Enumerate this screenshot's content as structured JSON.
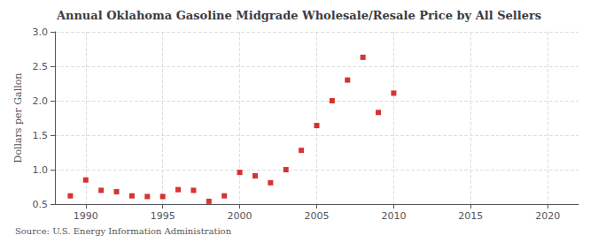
{
  "chart_data": {
    "type": "scatter",
    "title": "Annual Oklahoma Gasoline Midgrade Wholesale/Resale Price by All Sellers",
    "ylabel": "Dollars per Gallon",
    "annotations": [
      "Source: U.S. Energy Information Administration"
    ],
    "x": [
      1989,
      1990,
      1991,
      1992,
      1993,
      1994,
      1995,
      1996,
      1997,
      1998,
      1999,
      2000,
      2001,
      2002,
      2003,
      2004,
      2005,
      2006,
      2007,
      2008,
      2009,
      2010
    ],
    "values": [
      0.62,
      0.85,
      0.7,
      0.68,
      0.62,
      0.61,
      0.61,
      0.71,
      0.7,
      0.54,
      0.62,
      0.96,
      0.91,
      0.81,
      1.0,
      1.28,
      1.64,
      2.0,
      2.3,
      2.63,
      1.83,
      2.11
    ],
    "color": "#cc0000",
    "marker": "square",
    "xlim": [
      1988,
      2022
    ],
    "xticks": [
      1990,
      1995,
      2000,
      2005,
      2010,
      2015,
      2020
    ],
    "ylim": [
      0.5,
      3.0
    ],
    "yticks": [
      0.5,
      {
        "value": 1.0,
        "label": "1.0"
      },
      1.5,
      {
        "value": 2.0,
        "label": "2.0"
      },
      2.5,
      {
        "value": 3.0,
        "label": "3.0"
      }
    ],
    "grid": true
  }
}
